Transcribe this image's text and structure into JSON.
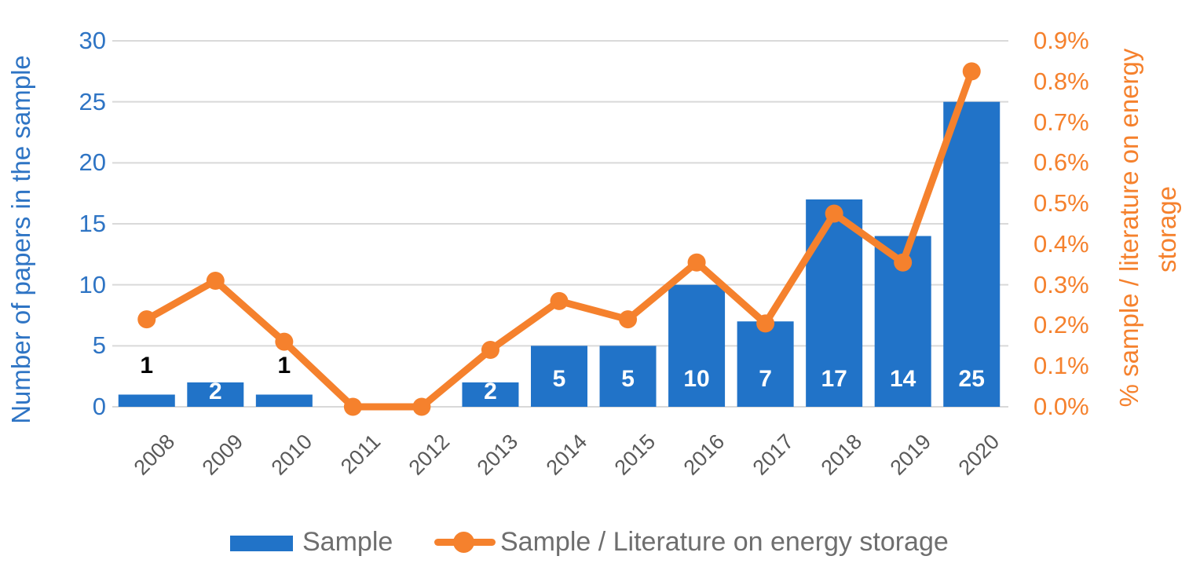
{
  "chart_data": {
    "type": "combo-bar-line",
    "categories": [
      "2008",
      "2009",
      "2010",
      "2011",
      "2012",
      "2013",
      "2014",
      "2015",
      "2016",
      "2017",
      "2018",
      "2019",
      "2020"
    ],
    "series": [
      {
        "name": "Sample",
        "type": "bar",
        "axis": "left",
        "values": [
          1,
          2,
          1,
          0,
          0,
          2,
          5,
          5,
          10,
          7,
          17,
          14,
          25
        ],
        "data_labels": [
          "1",
          "2",
          "1",
          "",
          "",
          "2",
          "5",
          "5",
          "10",
          "7",
          "17",
          "14",
          "25"
        ]
      },
      {
        "name": "Sample / Literature on energy storage",
        "type": "line",
        "axis": "right",
        "values_pct": [
          0.215,
          0.31,
          0.16,
          0,
          0,
          0.14,
          0.26,
          0.215,
          0.355,
          0.205,
          0.475,
          0.355,
          0.825
        ]
      }
    ],
    "left_axis": {
      "title": "Number of papers in the sample",
      "ticks": [
        0,
        5,
        10,
        15,
        20,
        25,
        30
      ],
      "range": [
        0,
        30
      ]
    },
    "right_axis": {
      "title_line1": "% sample / literature on energy",
      "title_line2": "storage",
      "ticks": [
        "0.0%",
        "0.1%",
        "0.2%",
        "0.3%",
        "0.4%",
        "0.5%",
        "0.6%",
        "0.7%",
        "0.8%",
        "0.9%"
      ],
      "range_pct": [
        0,
        0.9
      ]
    },
    "grid": true,
    "legend_position": "bottom"
  },
  "legend": {
    "sample_label": "Sample",
    "ratio_label": "Sample / Literature on energy storage"
  },
  "colors": {
    "bar_blue": "#2173C8",
    "line_orange": "#F5812D",
    "left_axis_text": "#2E74C4",
    "right_axis_text": "#F5812D",
    "category_text": "#595959",
    "legend_text": "#6E6E6E",
    "gridline": "#D9D9D9",
    "bar_label_inside": "#FFFFFF",
    "bar_label_outside": "#000000"
  }
}
